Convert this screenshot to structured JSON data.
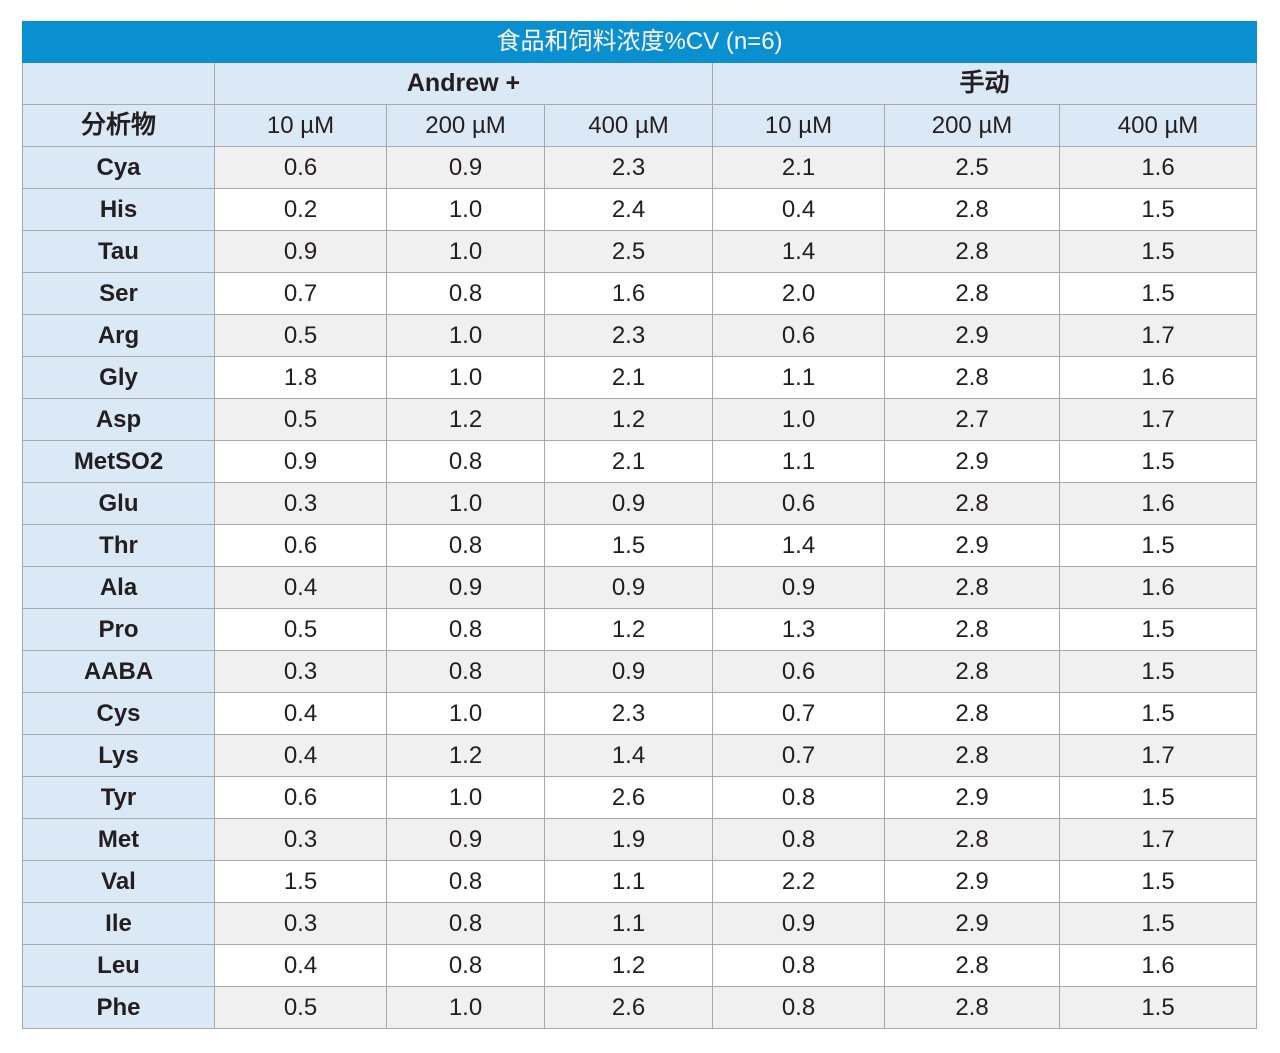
{
  "table": {
    "title": "食品和饲料浓度%CV (n=6)",
    "groups": [
      "Andrew +",
      "手动"
    ],
    "analyte_header": "分析物",
    "columns": [
      "10 µM",
      "200 µM",
      "400 µM",
      "10 µM",
      "200 µM",
      "400 µM"
    ],
    "rows": [
      {
        "analyte": "Cya",
        "values": [
          "0.6",
          "0.9",
          "2.3",
          "2.1",
          "2.5",
          "1.6"
        ]
      },
      {
        "analyte": "His",
        "values": [
          "0.2",
          "1.0",
          "2.4",
          "0.4",
          "2.8",
          "1.5"
        ]
      },
      {
        "analyte": "Tau",
        "values": [
          "0.9",
          "1.0",
          "2.5",
          "1.4",
          "2.8",
          "1.5"
        ]
      },
      {
        "analyte": "Ser",
        "values": [
          "0.7",
          "0.8",
          "1.6",
          "2.0",
          "2.8",
          "1.5"
        ]
      },
      {
        "analyte": "Arg",
        "values": [
          "0.5",
          "1.0",
          "2.3",
          "0.6",
          "2.9",
          "1.7"
        ]
      },
      {
        "analyte": "Gly",
        "values": [
          "1.8",
          "1.0",
          "2.1",
          "1.1",
          "2.8",
          "1.6"
        ]
      },
      {
        "analyte": "Asp",
        "values": [
          "0.5",
          "1.2",
          "1.2",
          "1.0",
          "2.7",
          "1.7"
        ]
      },
      {
        "analyte": "MetSO2",
        "values": [
          "0.9",
          "0.8",
          "2.1",
          "1.1",
          "2.9",
          "1.5"
        ]
      },
      {
        "analyte": "Glu",
        "values": [
          "0.3",
          "1.0",
          "0.9",
          "0.6",
          "2.8",
          "1.6"
        ]
      },
      {
        "analyte": "Thr",
        "values": [
          "0.6",
          "0.8",
          "1.5",
          "1.4",
          "2.9",
          "1.5"
        ]
      },
      {
        "analyte": "Ala",
        "values": [
          "0.4",
          "0.9",
          "0.9",
          "0.9",
          "2.8",
          "1.6"
        ]
      },
      {
        "analyte": "Pro",
        "values": [
          "0.5",
          "0.8",
          "1.2",
          "1.3",
          "2.8",
          "1.5"
        ]
      },
      {
        "analyte": "AABA",
        "values": [
          "0.3",
          "0.8",
          "0.9",
          "0.6",
          "2.8",
          "1.5"
        ]
      },
      {
        "analyte": "Cys",
        "values": [
          "0.4",
          "1.0",
          "2.3",
          "0.7",
          "2.8",
          "1.5"
        ]
      },
      {
        "analyte": "Lys",
        "values": [
          "0.4",
          "1.2",
          "1.4",
          "0.7",
          "2.8",
          "1.7"
        ]
      },
      {
        "analyte": "Tyr",
        "values": [
          "0.6",
          "1.0",
          "2.6",
          "0.8",
          "2.9",
          "1.5"
        ]
      },
      {
        "analyte": "Met",
        "values": [
          "0.3",
          "0.9",
          "1.9",
          "0.8",
          "2.8",
          "1.7"
        ]
      },
      {
        "analyte": "Val",
        "values": [
          "1.5",
          "0.8",
          "1.1",
          "2.2",
          "2.9",
          "1.5"
        ]
      },
      {
        "analyte": "Ile",
        "values": [
          "0.3",
          "0.8",
          "1.1",
          "0.9",
          "2.9",
          "1.5"
        ]
      },
      {
        "analyte": "Leu",
        "values": [
          "0.4",
          "0.8",
          "1.2",
          "0.8",
          "2.8",
          "1.6"
        ]
      },
      {
        "analyte": "Phe",
        "values": [
          "0.5",
          "1.0",
          "2.6",
          "0.8",
          "2.8",
          "1.5"
        ]
      }
    ]
  },
  "colors": {
    "title_bg": "#0a8fd0",
    "header_bg": "#dbe9f6",
    "stripe_bg": "#f0f0f1",
    "border": "#a7a9ac"
  }
}
